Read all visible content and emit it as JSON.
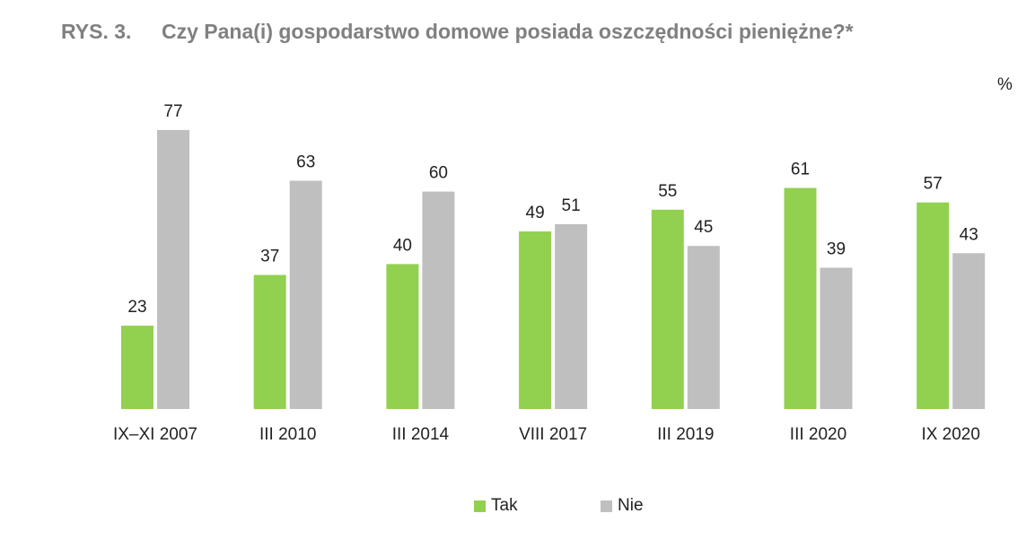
{
  "figure_label": "RYS. 3.",
  "chart_data": {
    "type": "bar",
    "title": "Czy Pana(i) gospodarstwo domowe posiada oszczędności pieniężne?*",
    "unit": "%",
    "categories": [
      "IX–XI 2007",
      "III 2010",
      "III 2014",
      "VIII 2017",
      "III 2019",
      "III 2020",
      "IX 2020"
    ],
    "series": [
      {
        "name": "Tak",
        "color": "#92d050",
        "values": [
          23,
          37,
          40,
          49,
          55,
          61,
          57
        ]
      },
      {
        "name": "Nie",
        "color": "#bfbfbf",
        "values": [
          77,
          63,
          60,
          51,
          45,
          39,
          43
        ]
      }
    ],
    "ylim": [
      0,
      100
    ],
    "grid": false,
    "legend_position": "bottom"
  }
}
